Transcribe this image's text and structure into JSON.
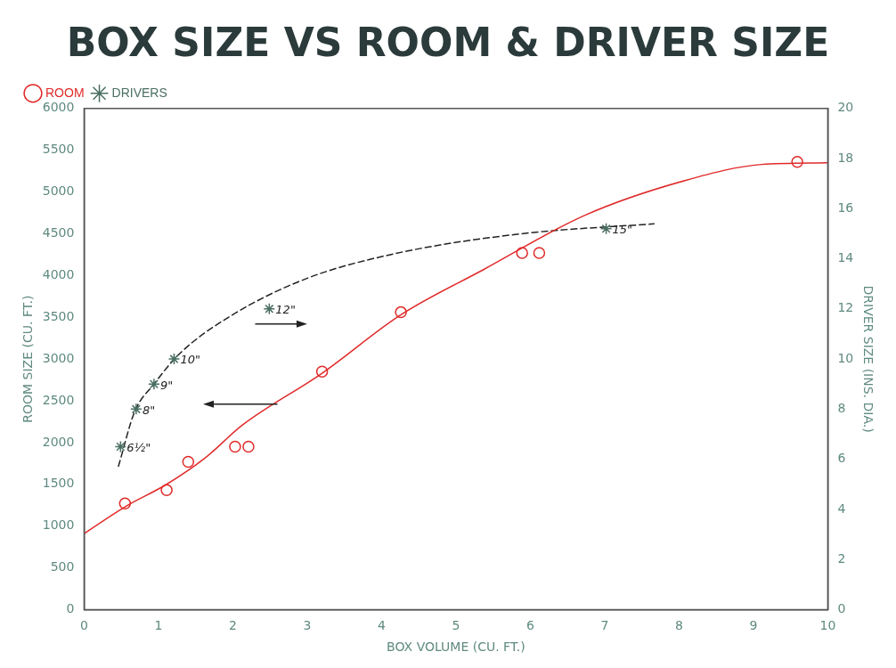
{
  "chart_data": {
    "type": "scatter",
    "title": "BOX SIZE VS ROOM & DRIVER SIZE",
    "xlabel": "BOX VOLUME (CU. FT.)",
    "ylabel": "ROOM SIZE (CU. FT.)",
    "y2label": "DRIVER SIZE (INS. DIA.)",
    "xlim": [
      0,
      10
    ],
    "xticks": [
      0,
      1,
      2,
      3,
      4,
      5,
      6,
      7,
      8,
      9,
      10
    ],
    "ylim": [
      0,
      6000
    ],
    "yticks": [
      0,
      500,
      1000,
      1500,
      2000,
      2500,
      3000,
      3500,
      4000,
      4500,
      5000,
      5500,
      6000
    ],
    "y2lim": [
      0,
      20
    ],
    "y2ticks": [
      0,
      2,
      4,
      6,
      8,
      10,
      12,
      14,
      16,
      18,
      20
    ],
    "grid": false,
    "legend": "top left",
    "series": [
      {
        "name": "ROOM",
        "color": "#e02a2a",
        "marker": "circle",
        "x": [
          0.55,
          1.11,
          1.4,
          2.03,
          2.21,
          3.2,
          4.26,
          5.89,
          6.12,
          9.59
        ],
        "values": [
          1270,
          1430,
          1770,
          1950,
          1950,
          2850,
          3560,
          4270,
          4270,
          5360
        ]
      },
      {
        "name": "DRIVERS",
        "axis": "y2",
        "color": "#4a6e63",
        "marker": "cross",
        "x": [
          0.49,
          0.7,
          0.94,
          1.21,
          2.49,
          7.02
        ],
        "values": [
          6.5,
          8,
          9,
          10,
          12,
          15.2
        ],
        "value_labels": [
          "6½\"",
          "8\"",
          "9\"",
          "10\"",
          "12\"",
          "15\""
        ]
      },
      {
        "type": "line",
        "color": "#e02a2a",
        "marker": "none",
        "line_style": "solid",
        "x": [
          0,
          0.55,
          1.11,
          1.62,
          2.13,
          3.2,
          4.26,
          5.37,
          6.73,
          8.09,
          9.11,
          10
        ],
        "values": [
          910,
          1230,
          1500,
          1810,
          2210,
          2830,
          3530,
          4070,
          4720,
          5140,
          5330,
          5350
        ]
      },
      {
        "type": "line",
        "axis": "y2",
        "color": "#222222",
        "marker": "none",
        "line_style": "dashed",
        "x": [
          0.46,
          0.68,
          0.94,
          1.28,
          1.96,
          2.98,
          4.17,
          5.88,
          7.67
        ],
        "values": [
          5.7,
          7.9,
          9,
          10.2,
          11.7,
          13.2,
          14.2,
          15,
          15.4
        ]
      }
    ]
  }
}
